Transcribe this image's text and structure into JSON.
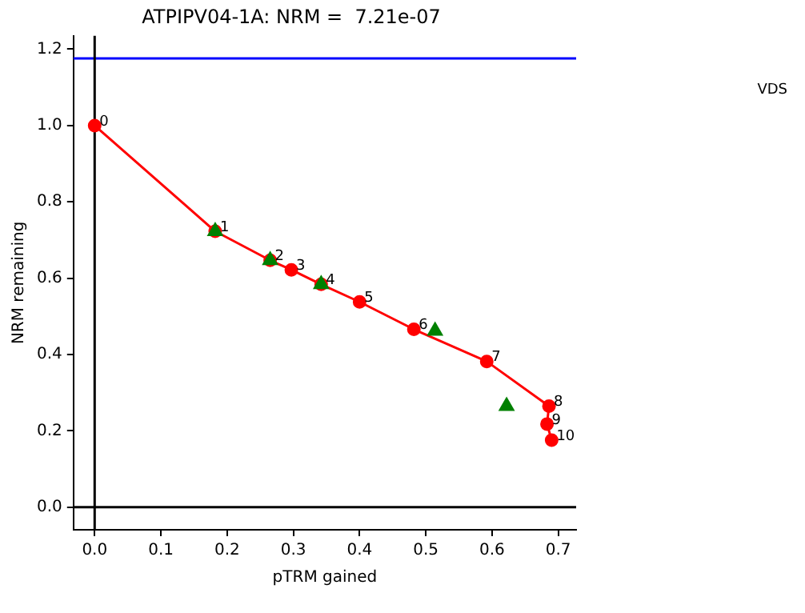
{
  "chart_data": {
    "type": "line",
    "title": "ATPIPV04-1A: NRM =  7.21e-07",
    "xlabel": "pTRM gained",
    "ylabel": "NRM remaining",
    "series": [
      {
        "type": "line",
        "color": "#ff0000",
        "marker": "circle",
        "x": [
          0,
          0.182,
          0.265,
          0.297,
          0.342,
          0.4,
          0.482,
          0.592,
          0.686,
          0.683,
          0.69
        ],
        "values": [
          1.0,
          0.723,
          0.647,
          0.622,
          0.584,
          0.538,
          0.466,
          0.382,
          0.265,
          0.218,
          0.176
        ]
      },
      {
        "type": "scatter",
        "color": "#008000",
        "marker": "triangle",
        "x": [
          0.182,
          0.265,
          0.342,
          0.514,
          0.622
        ],
        "values": [
          0.723,
          0.647,
          0.584,
          0.462,
          0.265
        ]
      }
    ],
    "xlim": [
      -0.032,
      0.727
    ],
    "ylim": [
      -0.059,
      1.235
    ],
    "xticks": [
      {
        "value": 0,
        "label": "0.0"
      },
      {
        "value": 0.1,
        "label": "0.1"
      },
      {
        "value": 0.2,
        "label": "0.2"
      },
      {
        "value": 0.3,
        "label": "0.3"
      },
      {
        "value": 0.4,
        "label": "0.4"
      },
      {
        "value": 0.5,
        "label": "0.5"
      },
      {
        "value": 0.6,
        "label": "0.6"
      },
      {
        "value": 0.7,
        "label": "0.7"
      }
    ],
    "yticks": [
      {
        "value": 0,
        "label": "0.0"
      },
      {
        "value": 0.2,
        "label": "0.2"
      },
      {
        "value": 0.4,
        "label": "0.4"
      },
      {
        "value": 0.6,
        "label": "0.6"
      },
      {
        "value": 0.8,
        "label": "0.8"
      },
      {
        "value": 1.0,
        "label": "1.0"
      },
      {
        "value": 1.2,
        "label": "1.2"
      }
    ],
    "ref_lines": [
      {
        "axis": "y",
        "value": 1.176,
        "color": "#0000ff"
      },
      {
        "axis": "x",
        "value": 0,
        "color": "#000000"
      },
      {
        "axis": "y",
        "value": 0,
        "color": "#000000"
      }
    ],
    "annotations": [
      {
        "text": "0",
        "x": 0,
        "y": 1.0
      },
      {
        "text": "1",
        "x": 0.182,
        "y": 0.723
      },
      {
        "text": "2",
        "x": 0.265,
        "y": 0.647
      },
      {
        "text": "3",
        "x": 0.297,
        "y": 0.622
      },
      {
        "text": "4",
        "x": 0.342,
        "y": 0.584
      },
      {
        "text": "5",
        "x": 0.4,
        "y": 0.538
      },
      {
        "text": "6",
        "x": 0.482,
        "y": 0.466
      },
      {
        "text": "7",
        "x": 0.592,
        "y": 0.382
      },
      {
        "text": "8",
        "x": 0.686,
        "y": 0.265
      },
      {
        "text": "9",
        "x": 0.683,
        "y": 0.218
      },
      {
        "text": "10",
        "x": 0.69,
        "y": 0.176
      },
      "VDS"
    ],
    "grid": false,
    "legend": false
  }
}
